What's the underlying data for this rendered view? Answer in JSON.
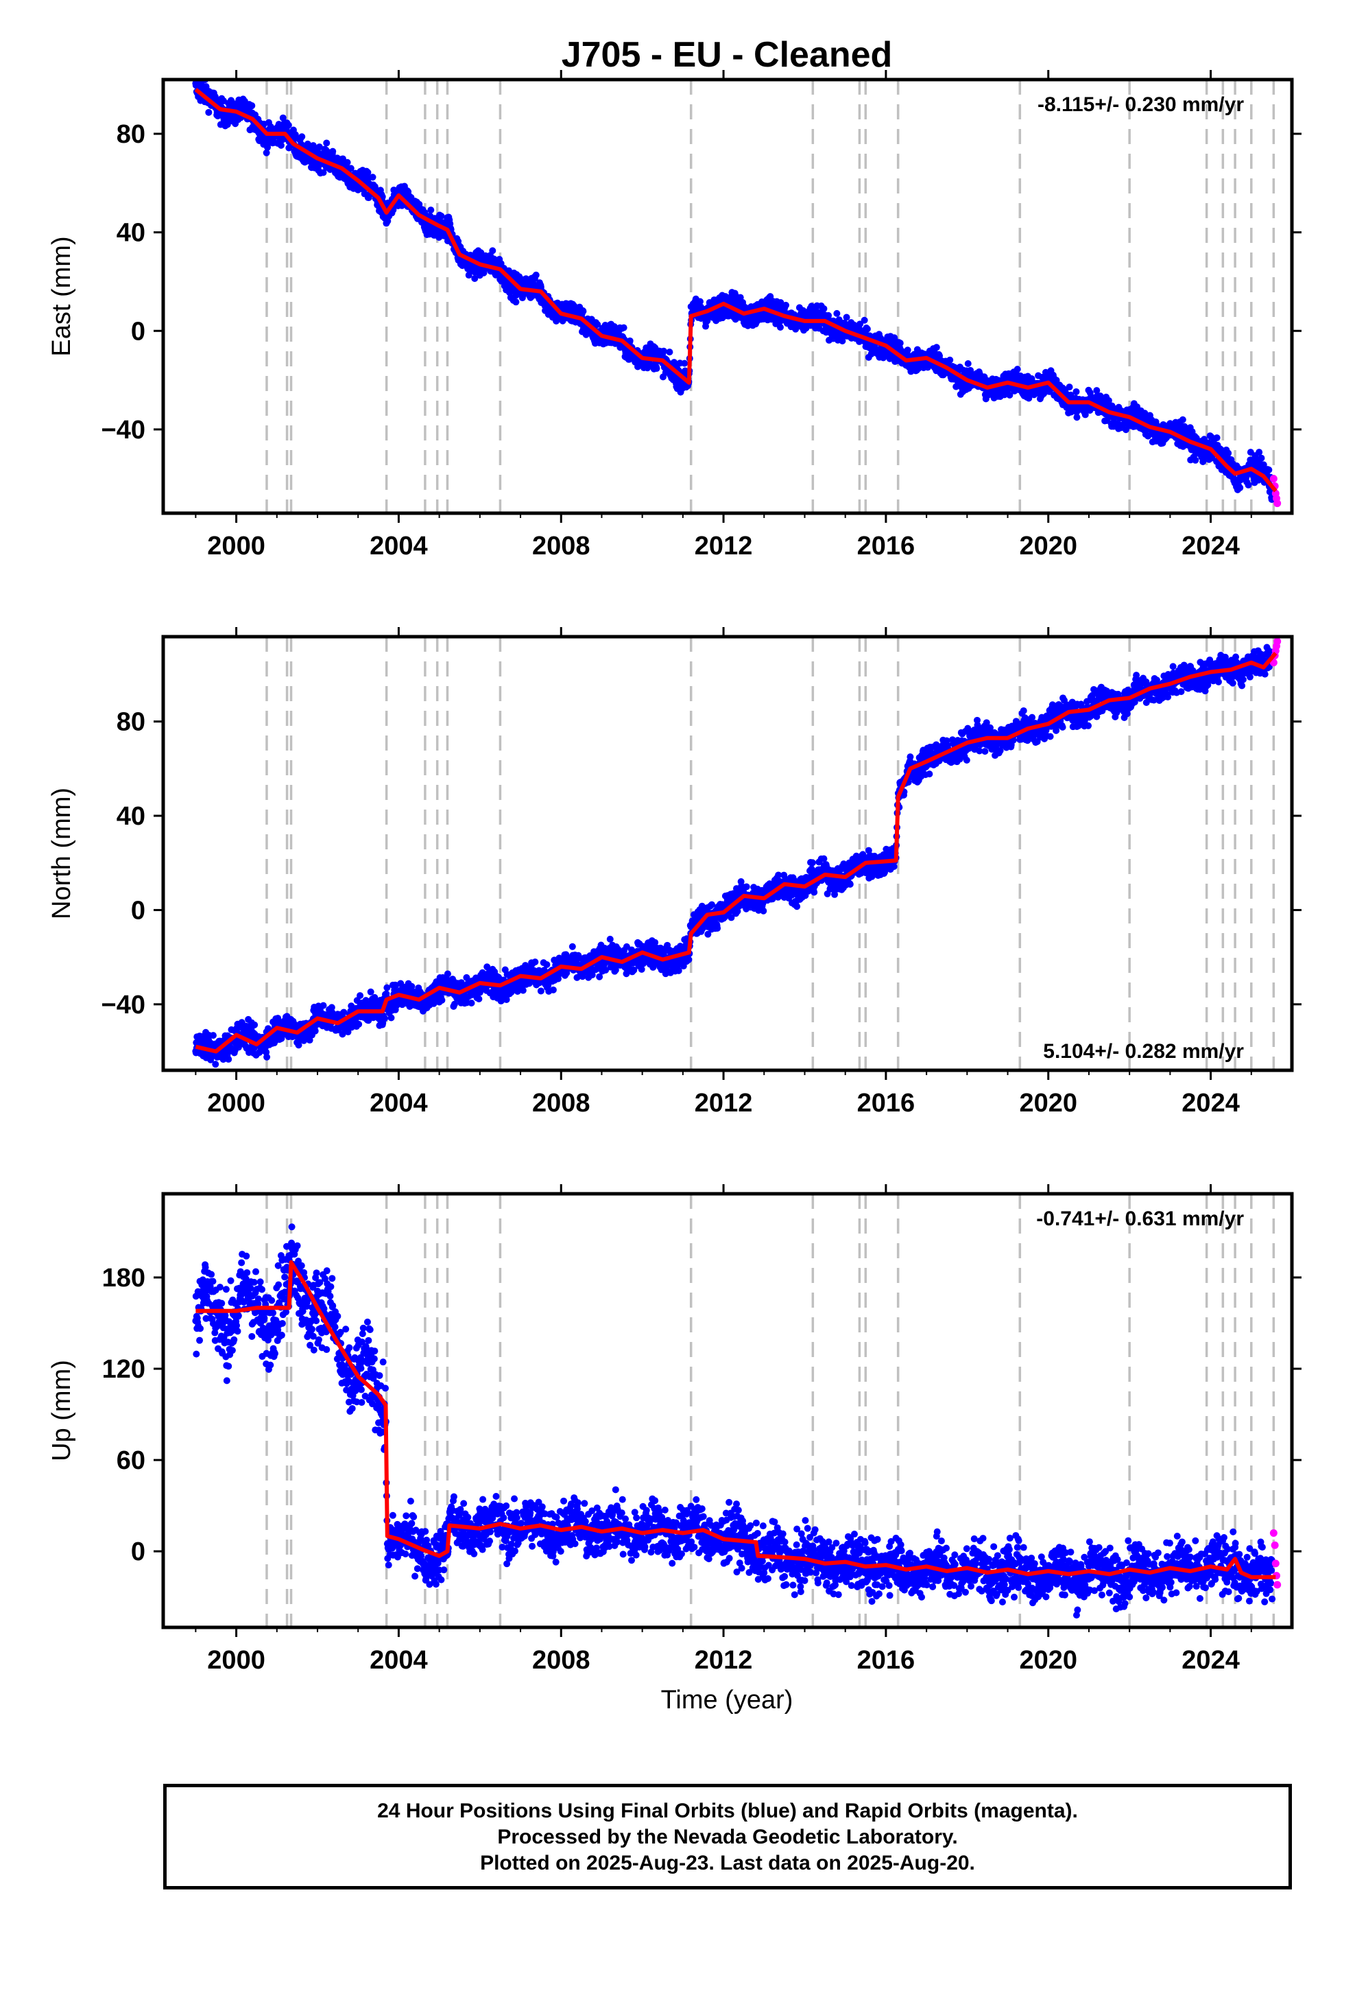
{
  "chart_data": {
    "title": "J705  - EU - Cleaned",
    "type": "scatter",
    "xlabel": "Time (year)",
    "xlim": [
      1998.2,
      2026.0
    ],
    "xticks": [
      2000,
      2004,
      2008,
      2012,
      2016,
      2020,
      2024
    ],
    "event_lines": [
      2000.75,
      2001.25,
      2001.35,
      2003.7,
      2004.65,
      2004.95,
      2005.2,
      2006.5,
      2011.2,
      2014.2,
      2015.35,
      2015.5,
      2016.3,
      2019.3,
      2022.0,
      2023.9,
      2024.3,
      2024.6,
      2025.0,
      2025.55
    ],
    "legend": [
      "Final Orbits (blue)",
      "Rapid Orbits (magenta)",
      "Model fit (red)"
    ],
    "colors": {
      "final": "#0000ff",
      "rapid": "#ff00ff",
      "model": "#ff0000",
      "event": "#c0c0c0"
    },
    "panels": [
      {
        "component": "East",
        "ylabel": "East (mm)",
        "ylim": [
          -74,
          102
        ],
        "yticks": [
          -40,
          0,
          40,
          80
        ],
        "rate": "-8.115+/- 0.230 mm/yr",
        "rate_position": "top-right",
        "model": [
          [
            1999.0,
            98
          ],
          [
            1999.6,
            90
          ],
          [
            2000.0,
            89
          ],
          [
            2000.4,
            86
          ],
          [
            2000.75,
            80
          ],
          [
            2001.2,
            80
          ],
          [
            2001.4,
            76
          ],
          [
            2002.0,
            70
          ],
          [
            2002.6,
            66
          ],
          [
            2003.0,
            61
          ],
          [
            2003.5,
            54
          ],
          [
            2003.7,
            48
          ],
          [
            2004.0,
            55
          ],
          [
            2004.5,
            47
          ],
          [
            2004.95,
            43
          ],
          [
            2005.2,
            41
          ],
          [
            2005.5,
            31
          ],
          [
            2006.0,
            27
          ],
          [
            2006.5,
            25
          ],
          [
            2007.0,
            17
          ],
          [
            2007.5,
            16
          ],
          [
            2008.0,
            7
          ],
          [
            2008.5,
            5
          ],
          [
            2009.0,
            -2
          ],
          [
            2009.5,
            -4
          ],
          [
            2010.0,
            -11
          ],
          [
            2010.5,
            -12
          ],
          [
            2011.15,
            -21
          ],
          [
            2011.2,
            6
          ],
          [
            2011.6,
            8
          ],
          [
            2012.0,
            11
          ],
          [
            2012.5,
            7
          ],
          [
            2013.0,
            9
          ],
          [
            2013.5,
            6
          ],
          [
            2014.0,
            4
          ],
          [
            2014.5,
            4
          ],
          [
            2015.0,
            0
          ],
          [
            2015.5,
            -3
          ],
          [
            2016.0,
            -6
          ],
          [
            2016.5,
            -12
          ],
          [
            2017.0,
            -11
          ],
          [
            2017.5,
            -15
          ],
          [
            2018.0,
            -20
          ],
          [
            2018.5,
            -23
          ],
          [
            2019.0,
            -21
          ],
          [
            2019.5,
            -23
          ],
          [
            2020.0,
            -21
          ],
          [
            2020.5,
            -29
          ],
          [
            2021.0,
            -29
          ],
          [
            2021.5,
            -33
          ],
          [
            2022.0,
            -35
          ],
          [
            2022.5,
            -39
          ],
          [
            2023.0,
            -41
          ],
          [
            2023.5,
            -45
          ],
          [
            2024.0,
            -48
          ],
          [
            2024.4,
            -55
          ],
          [
            2024.6,
            -58
          ],
          [
            2025.0,
            -56
          ],
          [
            2025.3,
            -59
          ],
          [
            2025.6,
            -65
          ]
        ],
        "scatter_spread": 3.5,
        "rapid": [
          [
            2025.55,
            -60
          ],
          [
            2025.58,
            -63
          ],
          [
            2025.6,
            -66
          ],
          [
            2025.62,
            -68
          ],
          [
            2025.64,
            -70
          ]
        ]
      },
      {
        "component": "North",
        "ylabel": "North (mm)",
        "ylim": [
          -68,
          116
        ],
        "yticks": [
          -40,
          0,
          40,
          80
        ],
        "rate": "5.104+/- 0.282 mm/yr",
        "rate_position": "bottom-right",
        "model": [
          [
            1999.0,
            -58
          ],
          [
            1999.5,
            -60
          ],
          [
            2000.0,
            -53
          ],
          [
            2000.5,
            -57
          ],
          [
            2001.0,
            -50
          ],
          [
            2001.5,
            -52
          ],
          [
            2002.0,
            -46
          ],
          [
            2002.5,
            -48
          ],
          [
            2003.0,
            -43
          ],
          [
            2003.6,
            -43
          ],
          [
            2003.7,
            -38
          ],
          [
            2004.0,
            -36
          ],
          [
            2004.5,
            -38
          ],
          [
            2005.0,
            -33
          ],
          [
            2005.5,
            -35
          ],
          [
            2006.0,
            -31
          ],
          [
            2006.5,
            -32
          ],
          [
            2007.0,
            -28
          ],
          [
            2007.5,
            -29
          ],
          [
            2008.0,
            -24
          ],
          [
            2008.5,
            -25
          ],
          [
            2009.0,
            -20
          ],
          [
            2009.5,
            -22
          ],
          [
            2010.0,
            -18
          ],
          [
            2010.5,
            -21
          ],
          [
            2011.15,
            -18
          ],
          [
            2011.2,
            -10
          ],
          [
            2011.6,
            -2
          ],
          [
            2012.0,
            -1
          ],
          [
            2012.5,
            6
          ],
          [
            2013.0,
            5
          ],
          [
            2013.5,
            11
          ],
          [
            2014.0,
            10
          ],
          [
            2014.5,
            15
          ],
          [
            2015.0,
            14
          ],
          [
            2015.5,
            20
          ],
          [
            2016.25,
            21
          ],
          [
            2016.3,
            48
          ],
          [
            2016.6,
            60
          ],
          [
            2017.0,
            63
          ],
          [
            2017.5,
            67
          ],
          [
            2018.0,
            71
          ],
          [
            2018.5,
            73
          ],
          [
            2019.0,
            73
          ],
          [
            2019.5,
            77
          ],
          [
            2020.0,
            79
          ],
          [
            2020.5,
            84
          ],
          [
            2021.0,
            85
          ],
          [
            2021.5,
            89
          ],
          [
            2022.0,
            90
          ],
          [
            2022.5,
            94
          ],
          [
            2023.0,
            96
          ],
          [
            2023.5,
            99
          ],
          [
            2024.0,
            101
          ],
          [
            2024.5,
            102
          ],
          [
            2025.0,
            105
          ],
          [
            2025.3,
            103
          ],
          [
            2025.6,
            109
          ]
        ],
        "scatter_spread": 4,
        "rapid": [
          [
            2025.55,
            105
          ],
          [
            2025.58,
            108
          ],
          [
            2025.6,
            110
          ],
          [
            2025.62,
            112
          ],
          [
            2025.64,
            114
          ]
        ]
      },
      {
        "component": "Up",
        "ylabel": "Up (mm)",
        "ylim": [
          -50,
          235
        ],
        "yticks": [
          0,
          60,
          120,
          180
        ],
        "rate": "-0.741+/- 0.631 mm/yr",
        "rate_position": "top-right",
        "model": [
          [
            1999.0,
            158
          ],
          [
            1999.5,
            158
          ],
          [
            2000.0,
            158
          ],
          [
            2000.5,
            160
          ],
          [
            2001.0,
            160
          ],
          [
            2001.3,
            160
          ],
          [
            2001.35,
            190
          ],
          [
            2001.7,
            175
          ],
          [
            2002.0,
            160
          ],
          [
            2002.5,
            137
          ],
          [
            2003.0,
            115
          ],
          [
            2003.5,
            103
          ],
          [
            2003.68,
            96
          ],
          [
            2003.72,
            10
          ],
          [
            2004.0,
            8
          ],
          [
            2004.6,
            1
          ],
          [
            2005.0,
            -3
          ],
          [
            2005.2,
            0
          ],
          [
            2005.25,
            17
          ],
          [
            2006.0,
            15
          ],
          [
            2006.5,
            18
          ],
          [
            2007.0,
            15
          ],
          [
            2007.5,
            17
          ],
          [
            2008.0,
            14
          ],
          [
            2008.5,
            16
          ],
          [
            2009.0,
            13
          ],
          [
            2009.5,
            15
          ],
          [
            2010.0,
            12
          ],
          [
            2010.5,
            14
          ],
          [
            2011.0,
            12
          ],
          [
            2011.5,
            14
          ],
          [
            2012.0,
            8
          ],
          [
            2012.8,
            6
          ],
          [
            2012.85,
            -3
          ],
          [
            2013.5,
            -4
          ],
          [
            2014.0,
            -5
          ],
          [
            2014.5,
            -8
          ],
          [
            2015.0,
            -7
          ],
          [
            2015.5,
            -10
          ],
          [
            2016.0,
            -9
          ],
          [
            2016.5,
            -12
          ],
          [
            2017.0,
            -10
          ],
          [
            2017.5,
            -13
          ],
          [
            2018.0,
            -11
          ],
          [
            2018.5,
            -14
          ],
          [
            2019.0,
            -12
          ],
          [
            2019.5,
            -15
          ],
          [
            2020.0,
            -13
          ],
          [
            2020.5,
            -15
          ],
          [
            2021.0,
            -13
          ],
          [
            2021.5,
            -15
          ],
          [
            2022.0,
            -12
          ],
          [
            2022.5,
            -14
          ],
          [
            2023.0,
            -11
          ],
          [
            2023.5,
            -13
          ],
          [
            2024.0,
            -10
          ],
          [
            2024.4,
            -12
          ],
          [
            2024.6,
            -5
          ],
          [
            2024.75,
            -14
          ],
          [
            2025.0,
            -17
          ],
          [
            2025.6,
            -17
          ]
        ],
        "scatter_spread": 12,
        "rapid": [
          [
            2025.55,
            12
          ],
          [
            2025.58,
            4
          ],
          [
            2025.6,
            -8
          ],
          [
            2025.62,
            -16
          ],
          [
            2025.64,
            -22
          ]
        ]
      }
    ]
  },
  "footer": {
    "line1": "24 Hour Positions Using Final Orbits (blue) and Rapid Orbits (magenta).",
    "line2": "Processed by the Nevada Geodetic Laboratory.",
    "line3": "Plotted on 2025-Aug-23. Last data on 2025-Aug-20."
  }
}
